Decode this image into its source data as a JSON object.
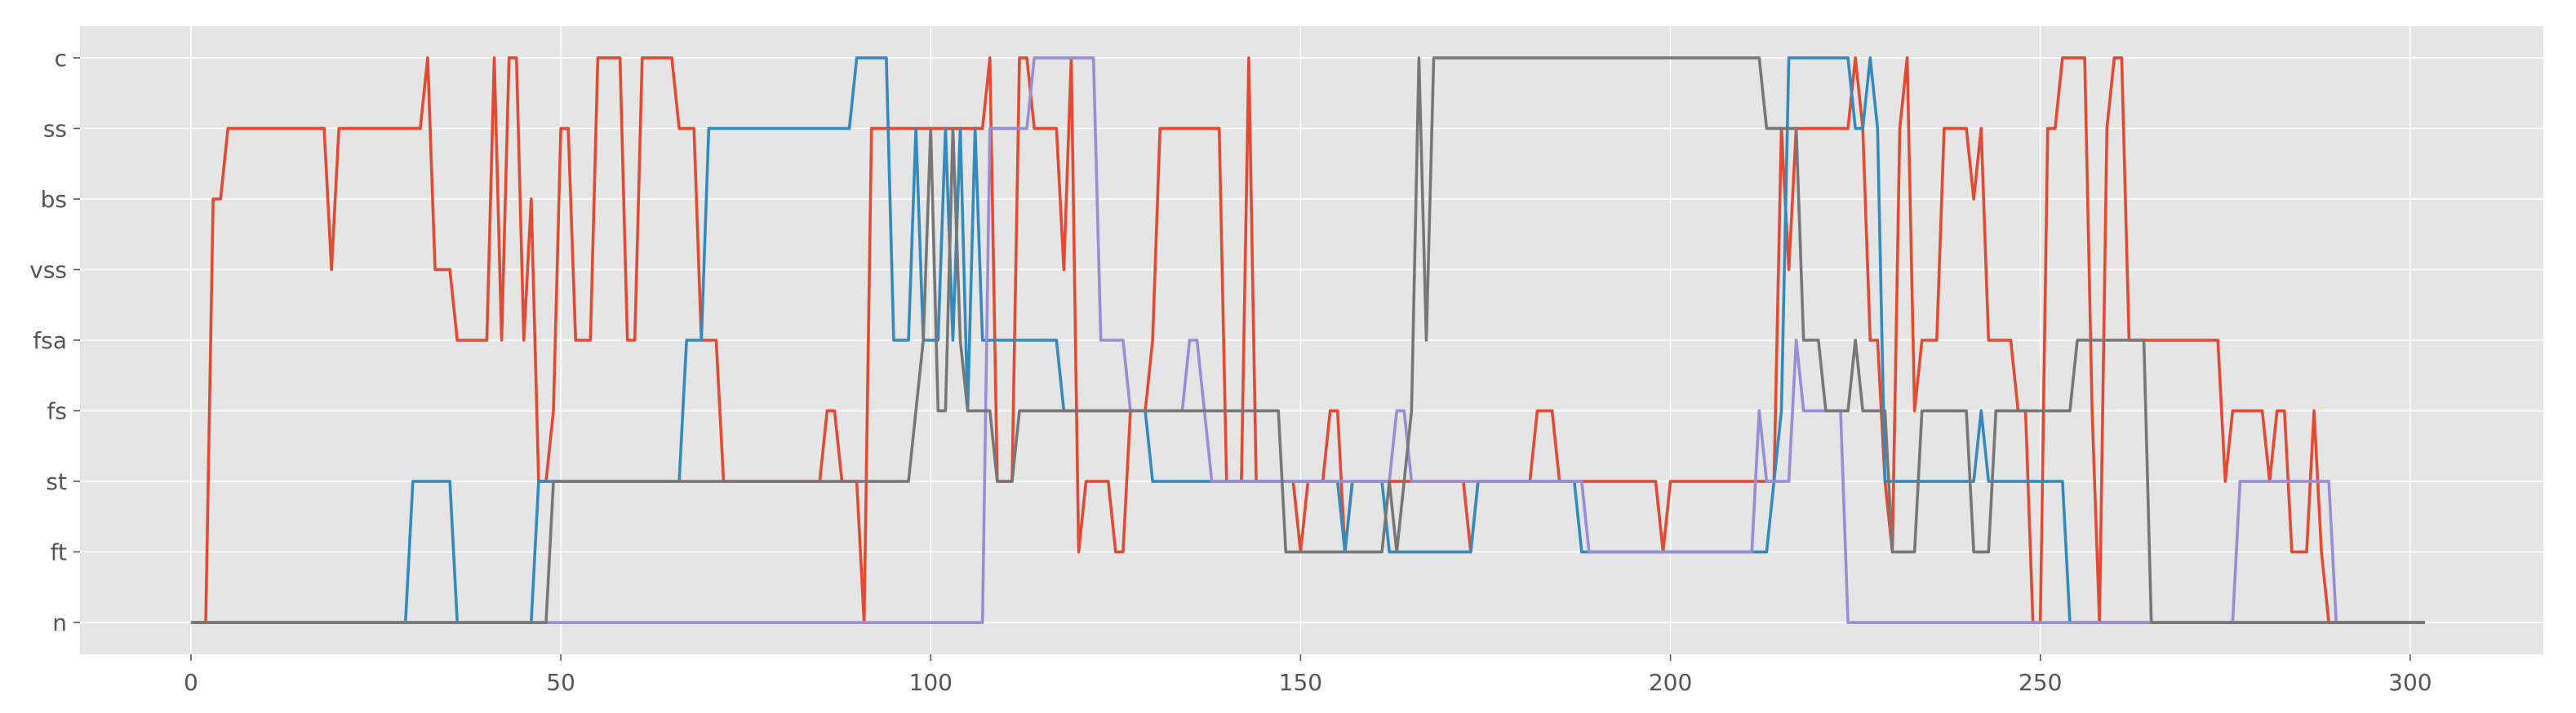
{
  "chart_data": {
    "type": "line",
    "title": "",
    "xlabel": "",
    "ylabel": "",
    "xlim": [
      -15,
      318
    ],
    "ylim": [
      -0.45,
      8.45
    ],
    "x_ticks": [
      0,
      50,
      100,
      150,
      200,
      250,
      300
    ],
    "y_categories": [
      "n",
      "ft",
      "st",
      "fs",
      "fsa",
      "vss",
      "bs",
      "ss",
      "c"
    ],
    "grid": true,
    "legend": "none",
    "colors": {
      "background": "#e5e5e5",
      "grid": "#ffffff",
      "tick_text": "#555555"
    },
    "series": [
      {
        "color": "#e24a33",
        "points": [
          [
            0,
            0
          ],
          [
            2,
            0
          ],
          [
            3,
            6
          ],
          [
            4,
            6
          ],
          [
            5,
            7
          ],
          [
            18,
            7
          ],
          [
            19,
            5
          ],
          [
            20,
            7
          ],
          [
            31,
            7
          ],
          [
            32,
            8
          ],
          [
            33,
            5
          ],
          [
            35,
            5
          ],
          [
            36,
            4
          ],
          [
            40,
            4
          ],
          [
            41,
            8
          ],
          [
            42,
            4
          ],
          [
            43,
            8
          ],
          [
            44,
            8
          ],
          [
            45,
            4
          ],
          [
            46,
            6
          ],
          [
            47,
            2
          ],
          [
            48,
            2
          ],
          [
            49,
            3
          ],
          [
            50,
            7
          ],
          [
            51,
            7
          ],
          [
            52,
            4
          ],
          [
            54,
            4
          ],
          [
            55,
            8
          ],
          [
            58,
            8
          ],
          [
            59,
            4
          ],
          [
            60,
            4
          ],
          [
            61,
            8
          ],
          [
            65,
            8
          ],
          [
            66,
            7
          ],
          [
            68,
            7
          ],
          [
            69,
            4
          ],
          [
            71,
            4
          ],
          [
            72,
            2
          ],
          [
            85,
            2
          ],
          [
            86,
            3
          ],
          [
            87,
            3
          ],
          [
            88,
            2
          ],
          [
            90,
            2
          ],
          [
            91,
            0
          ],
          [
            92,
            7
          ],
          [
            107,
            7
          ],
          [
            108,
            8
          ],
          [
            109,
            2
          ],
          [
            111,
            2
          ],
          [
            112,
            8
          ],
          [
            113,
            8
          ],
          [
            114,
            7
          ],
          [
            117,
            7
          ],
          [
            118,
            5
          ],
          [
            119,
            8
          ],
          [
            120,
            1
          ],
          [
            121,
            2
          ],
          [
            124,
            2
          ],
          [
            125,
            1
          ],
          [
            126,
            1
          ],
          [
            127,
            3
          ],
          [
            129,
            3
          ],
          [
            130,
            4
          ],
          [
            131,
            7
          ],
          [
            139,
            7
          ],
          [
            140,
            2
          ],
          [
            142,
            2
          ],
          [
            143,
            8
          ],
          [
            144,
            2
          ],
          [
            149,
            2
          ],
          [
            150,
            1
          ],
          [
            151,
            2
          ],
          [
            153,
            2
          ],
          [
            154,
            3
          ],
          [
            155,
            3
          ],
          [
            156,
            1
          ],
          [
            157,
            2
          ],
          [
            172,
            2
          ],
          [
            173,
            1
          ],
          [
            174,
            2
          ],
          [
            181,
            2
          ],
          [
            182,
            3
          ],
          [
            184,
            3
          ],
          [
            185,
            2
          ],
          [
            198,
            2
          ],
          [
            199,
            1
          ],
          [
            200,
            2
          ],
          [
            214,
            2
          ],
          [
            215,
            7
          ],
          [
            216,
            5
          ],
          [
            217,
            7
          ],
          [
            224,
            7
          ],
          [
            225,
            8
          ],
          [
            226,
            7
          ],
          [
            227,
            4
          ],
          [
            228,
            4
          ],
          [
            229,
            2
          ],
          [
            230,
            1
          ],
          [
            231,
            7
          ],
          [
            232,
            8
          ],
          [
            233,
            3
          ],
          [
            234,
            4
          ],
          [
            236,
            4
          ],
          [
            237,
            7
          ],
          [
            240,
            7
          ],
          [
            241,
            6
          ],
          [
            242,
            7
          ],
          [
            243,
            4
          ],
          [
            246,
            4
          ],
          [
            247,
            3
          ],
          [
            248,
            3
          ],
          [
            249,
            0
          ],
          [
            250,
            0
          ],
          [
            251,
            7
          ],
          [
            252,
            7
          ],
          [
            253,
            8
          ],
          [
            256,
            8
          ],
          [
            257,
            3
          ],
          [
            258,
            0
          ],
          [
            259,
            7
          ],
          [
            260,
            8
          ],
          [
            261,
            8
          ],
          [
            262,
            4
          ],
          [
            274,
            4
          ],
          [
            275,
            2
          ],
          [
            276,
            3
          ],
          [
            280,
            3
          ],
          [
            281,
            2
          ],
          [
            282,
            3
          ],
          [
            283,
            3
          ],
          [
            284,
            1
          ],
          [
            286,
            1
          ],
          [
            287,
            3
          ],
          [
            288,
            1
          ],
          [
            289,
            0
          ],
          [
            302,
            0
          ]
        ]
      },
      {
        "color": "#348abd",
        "points": [
          [
            0,
            0
          ],
          [
            29,
            0
          ],
          [
            30,
            2
          ],
          [
            35,
            2
          ],
          [
            36,
            0
          ],
          [
            46,
            0
          ],
          [
            47,
            2
          ],
          [
            66,
            2
          ],
          [
            67,
            4
          ],
          [
            69,
            4
          ],
          [
            70,
            7
          ],
          [
            89,
            7
          ],
          [
            90,
            8
          ],
          [
            94,
            8
          ],
          [
            95,
            4
          ],
          [
            97,
            4
          ],
          [
            98,
            7
          ],
          [
            99,
            4
          ],
          [
            101,
            4
          ],
          [
            102,
            7
          ],
          [
            103,
            4
          ],
          [
            104,
            7
          ],
          [
            105,
            3
          ],
          [
            106,
            7
          ],
          [
            107,
            4
          ],
          [
            117,
            4
          ],
          [
            118,
            3
          ],
          [
            129,
            3
          ],
          [
            130,
            2
          ],
          [
            155,
            2
          ],
          [
            156,
            1
          ],
          [
            157,
            2
          ],
          [
            161,
            2
          ],
          [
            162,
            1
          ],
          [
            173,
            1
          ],
          [
            174,
            2
          ],
          [
            187,
            2
          ],
          [
            188,
            1
          ],
          [
            213,
            1
          ],
          [
            214,
            2
          ],
          [
            215,
            3
          ],
          [
            216,
            8
          ],
          [
            224,
            8
          ],
          [
            225,
            7
          ],
          [
            226,
            7
          ],
          [
            227,
            8
          ],
          [
            228,
            7
          ],
          [
            229,
            2
          ],
          [
            241,
            2
          ],
          [
            242,
            3
          ],
          [
            243,
            2
          ],
          [
            253,
            2
          ],
          [
            254,
            0
          ],
          [
            302,
            0
          ]
        ]
      },
      {
        "color": "#988ed5",
        "points": [
          [
            0,
            0
          ],
          [
            49,
            0
          ],
          [
            50,
            0
          ],
          [
            107,
            0
          ],
          [
            108,
            7
          ],
          [
            113,
            7
          ],
          [
            114,
            8
          ],
          [
            117,
            8
          ],
          [
            118,
            8
          ],
          [
            122,
            8
          ],
          [
            123,
            4
          ],
          [
            126,
            4
          ],
          [
            127,
            3
          ],
          [
            134,
            3
          ],
          [
            135,
            4
          ],
          [
            136,
            4
          ],
          [
            137,
            3
          ],
          [
            138,
            2
          ],
          [
            162,
            2
          ],
          [
            163,
            3
          ],
          [
            164,
            3
          ],
          [
            165,
            2
          ],
          [
            188,
            2
          ],
          [
            189,
            1
          ],
          [
            211,
            1
          ],
          [
            212,
            3
          ],
          [
            213,
            2
          ],
          [
            216,
            2
          ],
          [
            217,
            4
          ],
          [
            218,
            3
          ],
          [
            223,
            3
          ],
          [
            224,
            0
          ],
          [
            276,
            0
          ],
          [
            277,
            2
          ],
          [
            289,
            2
          ],
          [
            290,
            0
          ],
          [
            302,
            0
          ]
        ]
      },
      {
        "color": "#777777",
        "points": [
          [
            0,
            0
          ],
          [
            48,
            0
          ],
          [
            49,
            2
          ],
          [
            97,
            2
          ],
          [
            98,
            3
          ],
          [
            99,
            4
          ],
          [
            100,
            7
          ],
          [
            101,
            3
          ],
          [
            102,
            3
          ],
          [
            103,
            7
          ],
          [
            104,
            4
          ],
          [
            105,
            3
          ],
          [
            108,
            3
          ],
          [
            109,
            2
          ],
          [
            111,
            2
          ],
          [
            112,
            3
          ],
          [
            147,
            3
          ],
          [
            148,
            1
          ],
          [
            161,
            1
          ],
          [
            162,
            2
          ],
          [
            163,
            1
          ],
          [
            164,
            2
          ],
          [
            165,
            3
          ],
          [
            166,
            8
          ],
          [
            167,
            4
          ],
          [
            168,
            8
          ],
          [
            169,
            8
          ],
          [
            212,
            8
          ],
          [
            213,
            7
          ],
          [
            217,
            7
          ],
          [
            218,
            4
          ],
          [
            220,
            4
          ],
          [
            221,
            3
          ],
          [
            224,
            3
          ],
          [
            225,
            4
          ],
          [
            226,
            3
          ],
          [
            229,
            3
          ],
          [
            230,
            1
          ],
          [
            233,
            1
          ],
          [
            234,
            3
          ],
          [
            240,
            3
          ],
          [
            241,
            1
          ],
          [
            243,
            1
          ],
          [
            244,
            3
          ],
          [
            254,
            3
          ],
          [
            255,
            4
          ],
          [
            264,
            4
          ],
          [
            265,
            0
          ],
          [
            302,
            0
          ]
        ]
      }
    ]
  }
}
